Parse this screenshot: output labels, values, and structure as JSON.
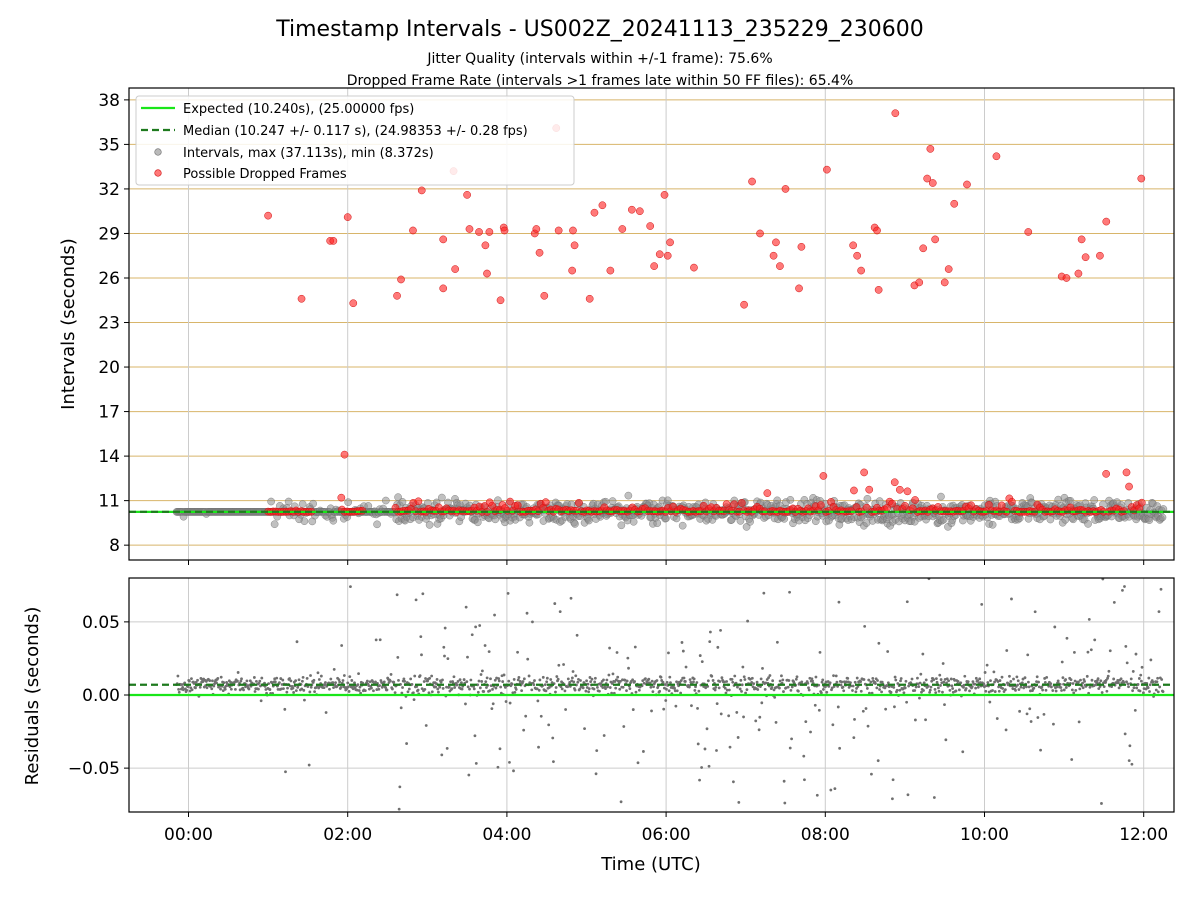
{
  "chart_data": [
    {
      "type": "scatter",
      "title": "Timestamp Intervals - US002Z_20241113_235229_230600",
      "subtitle_lines": [
        "Jitter Quality (intervals within +/-1 frame): 75.6%",
        "Dropped Frame Rate (intervals >1 frames late within 50 FF files): 65.4%"
      ],
      "ylabel": "Intervals (seconds)",
      "ylim": [
        7.0,
        38.8
      ],
      "yticks": [
        "8",
        "11",
        "14",
        "17",
        "20",
        "23",
        "26",
        "29",
        "32",
        "35",
        "38"
      ],
      "xlim_hours": [
        -0.73,
        12.35
      ],
      "grid": true,
      "legend_position": "upper-left",
      "colors": {
        "expected": "#19e619",
        "median": "#1e7a1e",
        "intervals": "#8c8c8c",
        "dropped": "#ff2020",
        "gold_grid": "#d8b56a",
        "grid": "#cccccc"
      },
      "series": [
        {
          "name": "Expected (10.240s), (25.00000 fps)",
          "kind": "line",
          "value": 10.24
        },
        {
          "name": "Median (10.247 +/- 0.117 s), (24.98353 +/- 0.28 fps)",
          "kind": "dashed-line",
          "value": 10.247
        },
        {
          "name": "Intervals, max (37.113s), min (8.372s)",
          "kind": "points",
          "max": 37.113,
          "min": 8.372
        },
        {
          "name": "Possible Dropped Frames",
          "kind": "points",
          "points": [
            [
              1.0,
              30.2
            ],
            [
              1.42,
              24.6
            ],
            [
              1.78,
              28.5
            ],
            [
              1.82,
              28.5
            ],
            [
              1.92,
              11.2
            ],
            [
              1.96,
              14.1
            ],
            [
              2.0,
              30.1
            ],
            [
              2.07,
              24.3
            ],
            [
              2.62,
              24.8
            ],
            [
              2.67,
              25.9
            ],
            [
              2.82,
              29.2
            ],
            [
              2.93,
              31.9
            ],
            [
              3.2,
              28.6
            ],
            [
              3.2,
              25.3
            ],
            [
              3.35,
              26.6
            ],
            [
              3.33,
              33.2
            ],
            [
              3.5,
              31.6
            ],
            [
              3.53,
              29.3
            ],
            [
              3.65,
              29.1
            ],
            [
              3.73,
              28.2
            ],
            [
              3.75,
              26.3
            ],
            [
              3.78,
              29.1
            ],
            [
              3.92,
              24.5
            ],
            [
              3.96,
              29.4
            ],
            [
              3.97,
              29.2
            ],
            [
              4.35,
              29.0
            ],
            [
              4.37,
              29.3
            ],
            [
              4.41,
              27.7
            ],
            [
              4.47,
              24.8
            ],
            [
              4.62,
              36.1
            ],
            [
              4.65,
              29.2
            ],
            [
              4.82,
              26.5
            ],
            [
              4.83,
              29.2
            ],
            [
              4.85,
              28.2
            ],
            [
              5.04,
              24.6
            ],
            [
              5.1,
              30.4
            ],
            [
              5.2,
              30.9
            ],
            [
              5.3,
              26.5
            ],
            [
              5.45,
              29.3
            ],
            [
              5.57,
              30.6
            ],
            [
              5.67,
              30.5
            ],
            [
              5.8,
              29.5
            ],
            [
              5.85,
              26.8
            ],
            [
              5.92,
              27.6
            ],
            [
              5.98,
              31.6
            ],
            [
              6.02,
              27.5
            ],
            [
              6.05,
              28.4
            ],
            [
              6.35,
              26.7
            ],
            [
              6.98,
              24.2
            ],
            [
              7.08,
              32.5
            ],
            [
              7.18,
              29.0
            ],
            [
              7.35,
              27.5
            ],
            [
              7.38,
              28.4
            ],
            [
              7.43,
              26.8
            ],
            [
              7.5,
              32.0
            ],
            [
              7.67,
              25.3
            ],
            [
              7.7,
              28.1
            ],
            [
              8.02,
              33.3
            ],
            [
              8.35,
              28.2
            ],
            [
              8.4,
              27.5
            ],
            [
              8.45,
              26.5
            ],
            [
              8.62,
              29.4
            ],
            [
              8.65,
              29.2
            ],
            [
              8.67,
              25.2
            ],
            [
              8.88,
              37.1
            ],
            [
              9.12,
              25.5
            ],
            [
              9.18,
              25.7
            ],
            [
              9.23,
              28.0
            ],
            [
              9.28,
              32.7
            ],
            [
              9.32,
              34.7
            ],
            [
              9.35,
              32.4
            ],
            [
              9.38,
              28.6
            ],
            [
              9.5,
              25.7
            ],
            [
              9.55,
              26.6
            ],
            [
              9.62,
              31.0
            ],
            [
              9.78,
              32.3
            ],
            [
              10.15,
              34.2
            ],
            [
              10.55,
              29.1
            ],
            [
              10.97,
              26.1
            ],
            [
              11.03,
              26.0
            ],
            [
              11.18,
              26.3
            ],
            [
              11.22,
              28.6
            ],
            [
              11.27,
              27.4
            ],
            [
              11.45,
              27.5
            ],
            [
              11.53,
              29.8
            ],
            [
              11.97,
              32.7
            ]
          ]
        }
      ],
      "jitter_band": [
        9.3,
        12.3
      ],
      "jitter_start_hours": -0.15
    },
    {
      "type": "scatter",
      "xlabel": "Time (UTC)",
      "ylabel": "Residuals (seconds)",
      "ylim": [
        -0.08,
        0.08
      ],
      "yticks": [
        "0.05",
        "0.00",
        "−0.05"
      ],
      "xticks": [
        "00:00",
        "02:00",
        "04:00",
        "06:00",
        "08:00",
        "10:00",
        "12:00"
      ],
      "xlim_hours": [
        -0.73,
        12.35
      ],
      "grid": true,
      "reference_lines": {
        "expected": 0.0,
        "median": 0.007
      },
      "series": [
        {
          "name": "Residuals",
          "kind": "points",
          "color": "#707070"
        }
      ]
    }
  ]
}
